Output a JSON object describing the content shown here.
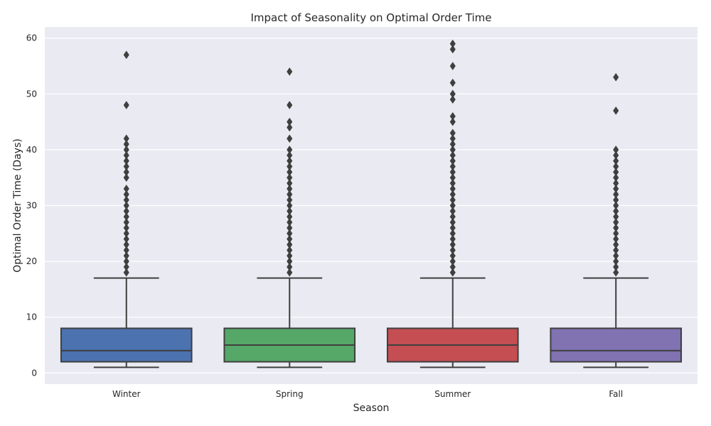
{
  "chart_data": {
    "type": "box",
    "title": "Impact of Seasonality on Optimal Order Time",
    "xlabel": "Season",
    "ylabel": "Optimal Order Time (Days)",
    "ylim": [
      -2,
      62
    ],
    "yticks": [
      0,
      10,
      20,
      30,
      40,
      50,
      60
    ],
    "grid": true,
    "categories": [
      "Winter",
      "Spring",
      "Summer",
      "Fall"
    ],
    "boxes": [
      {
        "category": "Winter",
        "color": "#4c72b0",
        "whisker_low": 1,
        "q1": 2,
        "median": 4,
        "q3": 8,
        "whisker_high": 17,
        "outliers": [
          18,
          19,
          20,
          21,
          22,
          23,
          24,
          25,
          26,
          27,
          28,
          29,
          30,
          31,
          32,
          33,
          35,
          36,
          37,
          38,
          39,
          40,
          41,
          42,
          48,
          57
        ]
      },
      {
        "category": "Spring",
        "color": "#55a868",
        "whisker_low": 1,
        "q1": 2,
        "median": 5,
        "q3": 8,
        "whisker_high": 17,
        "outliers": [
          18,
          19,
          20,
          21,
          22,
          23,
          24,
          25,
          26,
          27,
          28,
          29,
          30,
          31,
          32,
          33,
          34,
          35,
          36,
          37,
          38,
          39,
          40,
          42,
          44,
          45,
          48,
          54
        ]
      },
      {
        "category": "Summer",
        "color": "#c44e52",
        "whisker_low": 1,
        "q1": 2,
        "median": 5,
        "q3": 8,
        "whisker_high": 17,
        "outliers": [
          18,
          19,
          20,
          21,
          22,
          23,
          24,
          25,
          26,
          27,
          28,
          29,
          30,
          31,
          32,
          33,
          34,
          35,
          36,
          37,
          38,
          39,
          40,
          41,
          42,
          43,
          45,
          46,
          49,
          50,
          52,
          55,
          58,
          59
        ]
      },
      {
        "category": "Fall",
        "color": "#8172b2",
        "whisker_low": 1,
        "q1": 2,
        "median": 4,
        "q3": 8,
        "whisker_high": 17,
        "outliers": [
          18,
          19,
          20,
          21,
          22,
          23,
          24,
          25,
          26,
          27,
          28,
          29,
          30,
          31,
          32,
          33,
          34,
          35,
          36,
          37,
          38,
          39,
          40,
          47,
          53
        ]
      }
    ]
  }
}
